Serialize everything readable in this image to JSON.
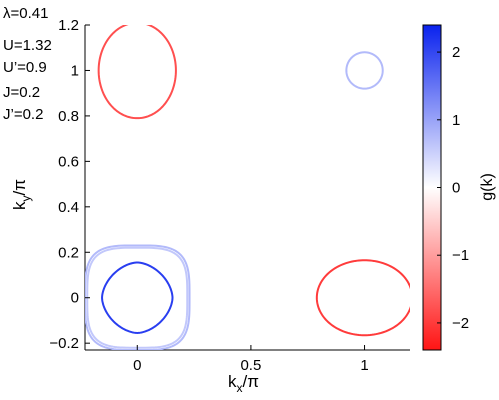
{
  "chart_data": {
    "type": "contour",
    "parameters": [
      "λ=0.41",
      "U=1.32",
      "U’=0.9",
      "J=0.2",
      "J’=0.2"
    ],
    "xlabel": {
      "base": "k",
      "sub": "x",
      "tail": "/π"
    },
    "ylabel": {
      "base": "k",
      "sub": "y",
      "tail": "/π"
    },
    "xlim": [
      -0.23,
      1.2
    ],
    "ylim": [
      -0.23,
      1.2
    ],
    "xticks": [
      0,
      0.5,
      1
    ],
    "xtick_labels": [
      "0",
      "0.5",
      "1"
    ],
    "yticks": [
      -0.2,
      0,
      0.2,
      0.4,
      0.6,
      0.8,
      1,
      1.2
    ],
    "ytick_labels": [
      "−0.2",
      "0",
      "0.2",
      "0.4",
      "0.6",
      "0.8",
      "1",
      "1.2"
    ],
    "colorbar": {
      "label": "g(k)",
      "range": [
        -2.4,
        2.4
      ],
      "ticks": [
        2,
        1,
        0,
        -1,
        -2
      ],
      "tick_labels": [
        "2",
        "1",
        "0",
        "−1",
        "−2"
      ]
    },
    "contours": [
      {
        "name": "pocket-gamma-outer",
        "cx": 0,
        "cy": 0,
        "rx": 0.23,
        "ry": 0.23,
        "shape": "rounded-square",
        "g": 0.75
      },
      {
        "name": "pocket-gamma-mid",
        "cx": 0,
        "cy": 0,
        "rx": 0.22,
        "ry": 0.22,
        "shape": "rounded-square",
        "g": 0.6
      },
      {
        "name": "pocket-gamma-inner",
        "cx": 0,
        "cy": 0,
        "rx": 0.155,
        "ry": 0.155,
        "shape": "rounded-diamond",
        "g": 2.1
      },
      {
        "name": "pocket-x",
        "cx": 1,
        "cy": 0,
        "rx": 0.21,
        "ry": 0.165,
        "shape": "ellipse",
        "g": -2.0
      },
      {
        "name": "pocket-y",
        "cx": 0,
        "cy": 1,
        "rx": 0.17,
        "ry": 0.21,
        "shape": "ellipse",
        "g": -1.8
      },
      {
        "name": "pocket-m",
        "cx": 1,
        "cy": 1,
        "rx": 0.08,
        "ry": 0.08,
        "shape": "ellipse",
        "g": 0.75
      }
    ]
  }
}
